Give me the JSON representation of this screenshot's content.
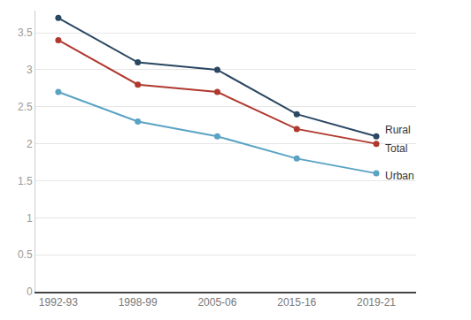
{
  "chart_data": {
    "type": "line",
    "categories": [
      "1992-93",
      "1998-99",
      "2005-06",
      "2015-16",
      "2019-21"
    ],
    "series": [
      {
        "name": "Rural",
        "color": "#2b4763",
        "values": [
          3.7,
          3.1,
          3.0,
          2.4,
          2.1
        ]
      },
      {
        "name": "Total",
        "color": "#b0392f",
        "values": [
          3.4,
          2.8,
          2.7,
          2.2,
          2.0
        ]
      },
      {
        "name": "Urban",
        "color": "#5aa3c4",
        "values": [
          2.7,
          2.3,
          2.1,
          1.8,
          1.6
        ]
      }
    ],
    "ylim": [
      0,
      3.8
    ],
    "yticks": [
      0,
      0.5,
      1,
      1.5,
      2,
      2.5,
      3,
      3.5
    ],
    "grid": true,
    "marker": "circle"
  }
}
